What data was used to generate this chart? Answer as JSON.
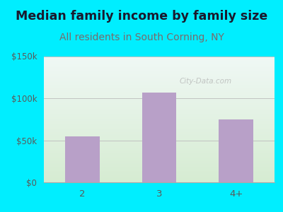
{
  "title": "Median family income by family size",
  "subtitle": "All residents in South Corning, NY",
  "categories": [
    "2",
    "3",
    "4+"
  ],
  "values": [
    55000,
    107000,
    75000
  ],
  "bar_color": "#b8a0c8",
  "title_color": "#1a1a2e",
  "subtitle_color": "#7a6a6a",
  "axis_label_color": "#5a5a5a",
  "background_color": "#00eeff",
  "plot_bg_top_left": "#d6ecd2",
  "plot_bg_bottom_right": "#f0f8f5",
  "ylim": [
    0,
    150000
  ],
  "yticks": [
    0,
    50000,
    100000,
    150000
  ],
  "ytick_labels": [
    "$0",
    "$50k",
    "$100k",
    "$150k"
  ],
  "watermark": "City-Data.com",
  "title_fontsize": 12.5,
  "subtitle_fontsize": 10,
  "bar_width": 0.45
}
